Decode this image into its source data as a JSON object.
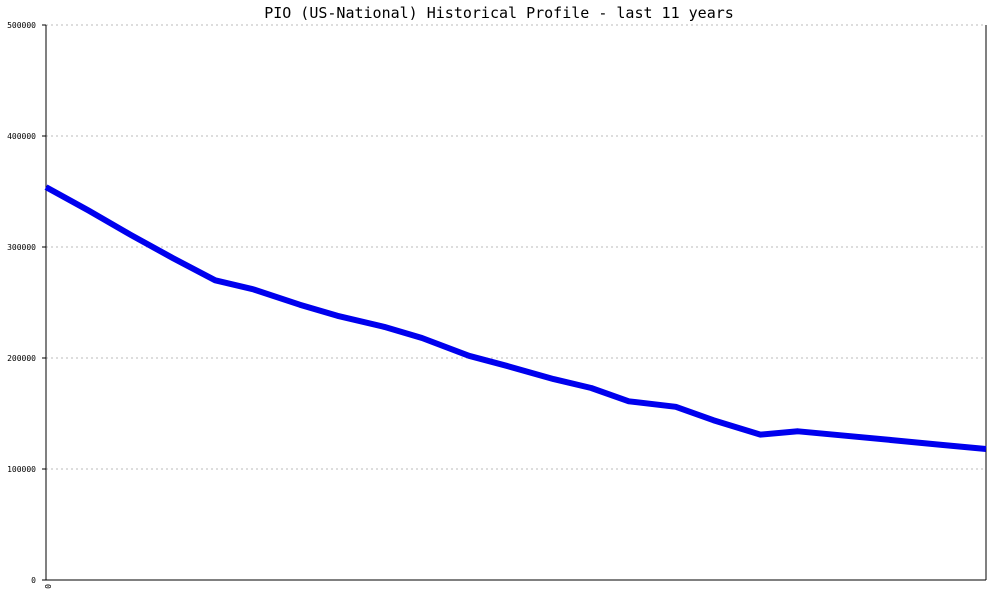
{
  "chart_data": {
    "type": "line",
    "title": "PIO (US-National) Historical Profile - last 11 years",
    "xlabel": "",
    "ylabel": "",
    "x_tick_labels": [
      "0"
    ],
    "y_tick_labels": [
      "0",
      "100000",
      "200000",
      "300000",
      "400000",
      "500000"
    ],
    "ylim": [
      0,
      500000
    ],
    "xlim": [
      0,
      1
    ],
    "grid": true,
    "legend": "none",
    "series": [
      {
        "color": "#0000ee",
        "x": [
          0,
          0.045,
          0.09,
          0.135,
          0.18,
          0.22,
          0.27,
          0.31,
          0.36,
          0.4,
          0.45,
          0.49,
          0.54,
          0.58,
          0.62,
          0.67,
          0.71,
          0.76,
          0.8,
          0.85,
          0.9,
          0.95,
          1.0
        ],
        "y": [
          354000,
          333000,
          311000,
          290000,
          270000,
          262000,
          248000,
          238000,
          228000,
          218000,
          202000,
          193000,
          181000,
          173000,
          161000,
          156000,
          144000,
          131000,
          134000,
          130000,
          126000,
          122000,
          118000
        ]
      }
    ]
  }
}
